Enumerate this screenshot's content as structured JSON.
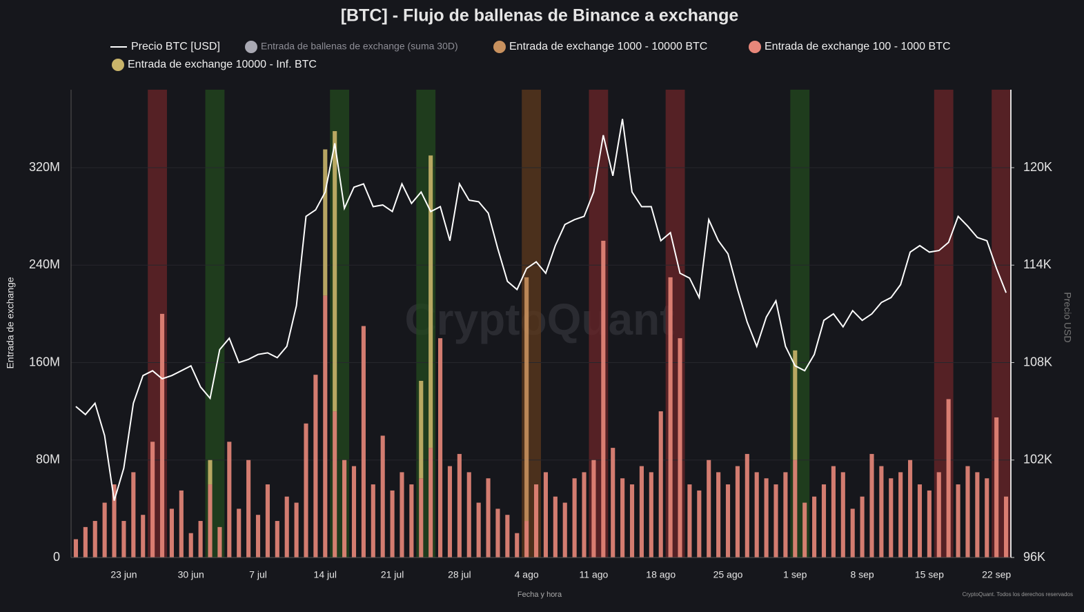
{
  "chart_data": {
    "type": "bar",
    "title": "[BTC] - Flujo de ballenas de Binance a exchange",
    "y_label": "Entrada de exchange",
    "y2_label": "Precio USD",
    "x_label": "Fecha y hora",
    "watermark": "CryptoQuant",
    "footer": "CryptoQuant. Todos los derechos reservados",
    "x": [
      "18 jun",
      "19 jun",
      "20 jun",
      "21 jun",
      "22 jun",
      "23 jun",
      "24 jun",
      "25 jun",
      "26 jun",
      "27 jun",
      "28 jun",
      "29 jun",
      "30 jun",
      "1 jul",
      "2 jul",
      "3 jul",
      "4 jul",
      "5 jul",
      "6 jul",
      "7 jul",
      "8 jul",
      "9 jul",
      "10 jul",
      "11 jul",
      "12 jul",
      "13 jul",
      "14 jul",
      "15 jul",
      "16 jul",
      "17 jul",
      "18 jul",
      "19 jul",
      "20 jul",
      "21 jul",
      "22 jul",
      "23 jul",
      "24 jul",
      "25 jul",
      "26 jul",
      "27 jul",
      "28 jul",
      "29 jul",
      "30 jul",
      "31 jul",
      "1 ago",
      "2 ago",
      "3 ago",
      "4 ago",
      "5 ago",
      "6 ago",
      "7 ago",
      "8 ago",
      "9 ago",
      "10 ago",
      "11 ago",
      "12 ago",
      "13 ago",
      "14 ago",
      "15 ago",
      "16 ago",
      "17 ago",
      "18 ago",
      "19 ago",
      "20 ago",
      "21 ago",
      "22 ago",
      "23 ago",
      "24 ago",
      "25 ago",
      "26 ago",
      "27 ago",
      "28 ago",
      "29 ago",
      "30 ago",
      "31 ago",
      "1 sep",
      "2 sep",
      "3 sep",
      "4 sep",
      "5 sep",
      "6 sep",
      "7 sep",
      "8 sep",
      "9 sep",
      "10 sep",
      "11 sep",
      "12 sep",
      "13 sep",
      "14 sep",
      "15 sep",
      "16 sep",
      "17 sep",
      "18 sep",
      "19 sep",
      "20 sep",
      "21 sep",
      "22 sep",
      "23 sep"
    ],
    "ylim": [
      0,
      384
    ],
    "yticks": [
      0,
      {
        "value": 80,
        "label": "80M"
      },
      {
        "value": 160,
        "label": "160M"
      },
      {
        "value": 240,
        "label": "240M"
      },
      {
        "value": 320,
        "label": "320M"
      }
    ],
    "y2lim": [
      96000,
      124800
    ],
    "y2ticks": [
      {
        "value": 96000,
        "label": "96K"
      },
      {
        "value": 102000,
        "label": "102K"
      },
      {
        "value": 108000,
        "label": "108K"
      },
      {
        "value": 114000,
        "label": "114K"
      },
      {
        "value": 120000,
        "label": "120K"
      }
    ],
    "grid": true,
    "bands": [
      {
        "start": "26 jun",
        "end": "27 jun",
        "color": "#6b2628"
      },
      {
        "start": "2 jul",
        "end": "3 jul",
        "color": "#234a1e"
      },
      {
        "start": "15 jul",
        "end": "16 jul",
        "color": "#234a1e"
      },
      {
        "start": "24 jul",
        "end": "25 jul",
        "color": "#234a1e"
      },
      {
        "start": "4 ago",
        "end": "5 ago",
        "color": "#5e3a1c"
      },
      {
        "start": "11 ago",
        "end": "12 ago",
        "color": "#6b2628"
      },
      {
        "start": "19 ago",
        "end": "20 ago",
        "color": "#6b2628"
      },
      {
        "start": "1 sep",
        "end": "2 sep",
        "color": "#234a1e"
      },
      {
        "start": "16 sep",
        "end": "17 sep",
        "color": "#6b2628"
      },
      {
        "start": "22 sep",
        "end": "23 sep",
        "color": "#6b2628"
      }
    ],
    "series": [
      {
        "name": "Precio BTC [USD]",
        "type": "line",
        "axis": "y2",
        "color": "#ffffff",
        "values": [
          105300,
          104800,
          105500,
          103500,
          99500,
          101500,
          105500,
          107200,
          107500,
          107000,
          107200,
          107500,
          107800,
          106500,
          105800,
          108800,
          109500,
          108000,
          108200,
          108500,
          108600,
          108300,
          109000,
          111500,
          117000,
          117400,
          118500,
          121500,
          117500,
          118800,
          119000,
          117600,
          117700,
          117300,
          119000,
          117800,
          118500,
          117300,
          117600,
          115500,
          119000,
          118000,
          117900,
          117200,
          115000,
          113000,
          112500,
          113800,
          114200,
          113500,
          115200,
          116500,
          116800,
          117000,
          118500,
          122000,
          119500,
          123000,
          118500,
          117600,
          117600,
          115500,
          116000,
          113500,
          113200,
          112000,
          116800,
          115500,
          114700,
          112500,
          110500,
          109000,
          110800,
          111800,
          109000,
          107800,
          107500,
          108500,
          110600,
          111000,
          110200,
          111200,
          110600,
          111000,
          111700,
          112000,
          112800,
          114800,
          115200,
          114800,
          114900,
          115400,
          117000,
          116400,
          115700,
          115500,
          113800,
          112300
        ]
      },
      {
        "name": "Entrada de ballenas de exchange (suma 30D)",
        "type": "bar",
        "color": "#a9a9b3",
        "values": [
          null,
          null,
          null,
          null,
          null,
          null,
          null,
          null,
          null,
          null,
          null,
          null,
          null,
          null,
          null,
          null,
          null,
          null,
          null,
          null,
          null,
          null,
          null,
          null,
          null,
          null,
          null,
          null,
          null,
          null,
          null,
          null,
          null,
          null,
          null,
          null,
          null,
          null,
          null,
          null,
          null,
          null,
          null,
          null,
          null,
          null,
          null,
          null,
          null,
          null,
          null,
          null,
          null,
          null,
          null,
          null,
          null,
          null,
          null,
          null,
          null,
          null,
          null,
          null,
          null,
          null,
          null,
          null,
          null,
          null,
          null,
          null,
          null,
          null,
          null,
          null,
          null,
          null,
          null,
          null,
          null,
          null,
          null,
          null,
          null,
          null,
          null,
          null,
          null,
          null,
          null,
          null,
          null,
          null,
          null,
          null,
          null,
          null
        ]
      },
      {
        "name": "Entrada de exchange 1000 - 10000 BTC",
        "type": "bar",
        "color": "#c8915e",
        "values": [
          null,
          null,
          null,
          null,
          null,
          null,
          null,
          null,
          null,
          null,
          null,
          null,
          null,
          null,
          null,
          null,
          null,
          null,
          null,
          null,
          null,
          null,
          null,
          null,
          null,
          null,
          null,
          null,
          null,
          null,
          null,
          null,
          null,
          null,
          null,
          null,
          null,
          null,
          null,
          null,
          null,
          null,
          null,
          null,
          null,
          null,
          null,
          200,
          null,
          null,
          null,
          null,
          null,
          null,
          null,
          null,
          null,
          null,
          null,
          null,
          null,
          null,
          null,
          null,
          null,
          null,
          null,
          null,
          null,
          null,
          null,
          null,
          null,
          null,
          null,
          null,
          null,
          null,
          null,
          null,
          null,
          null,
          null,
          null,
          null,
          null,
          null,
          null,
          null,
          null,
          null,
          null,
          null,
          null,
          null,
          null,
          null,
          null
        ]
      },
      {
        "name": "Entrada de exchange 100 - 1000 BTC",
        "type": "bar",
        "color": "#e8877a",
        "values": [
          15,
          25,
          30,
          45,
          60,
          30,
          70,
          35,
          95,
          200,
          40,
          55,
          20,
          30,
          60,
          25,
          95,
          40,
          80,
          35,
          60,
          30,
          50,
          45,
          110,
          150,
          215,
          120,
          80,
          75,
          190,
          60,
          100,
          55,
          70,
          60,
          65,
          90,
          180,
          75,
          85,
          70,
          45,
          65,
          40,
          35,
          20,
          30,
          60,
          70,
          50,
          45,
          65,
          70,
          80,
          260,
          90,
          65,
          60,
          75,
          70,
          120,
          230,
          180,
          60,
          55,
          80,
          70,
          60,
          75,
          85,
          70,
          65,
          60,
          70,
          80,
          45,
          50,
          60,
          75,
          70,
          40,
          50,
          85,
          75,
          65,
          70,
          80,
          60,
          55,
          70,
          130,
          60,
          75,
          70,
          65,
          115,
          50
        ]
      },
      {
        "name": "Entrada de exchange 10000 - Inf. BTC",
        "type": "bar",
        "color": "#c9b46a",
        "values": [
          null,
          null,
          null,
          null,
          null,
          null,
          null,
          null,
          null,
          null,
          null,
          null,
          null,
          null,
          20,
          null,
          null,
          null,
          null,
          null,
          null,
          null,
          null,
          null,
          null,
          null,
          120,
          230,
          null,
          null,
          null,
          null,
          null,
          null,
          null,
          null,
          80,
          240,
          null,
          null,
          null,
          null,
          null,
          null,
          null,
          null,
          null,
          null,
          null,
          null,
          null,
          null,
          null,
          null,
          null,
          null,
          null,
          null,
          null,
          null,
          null,
          null,
          null,
          null,
          null,
          null,
          null,
          null,
          null,
          null,
          null,
          null,
          null,
          null,
          null,
          90,
          null,
          null,
          null,
          null,
          null,
          null,
          null,
          null,
          null,
          null,
          null,
          null,
          null,
          null,
          null,
          null,
          null,
          null,
          null,
          null,
          null,
          null
        ]
      }
    ]
  }
}
